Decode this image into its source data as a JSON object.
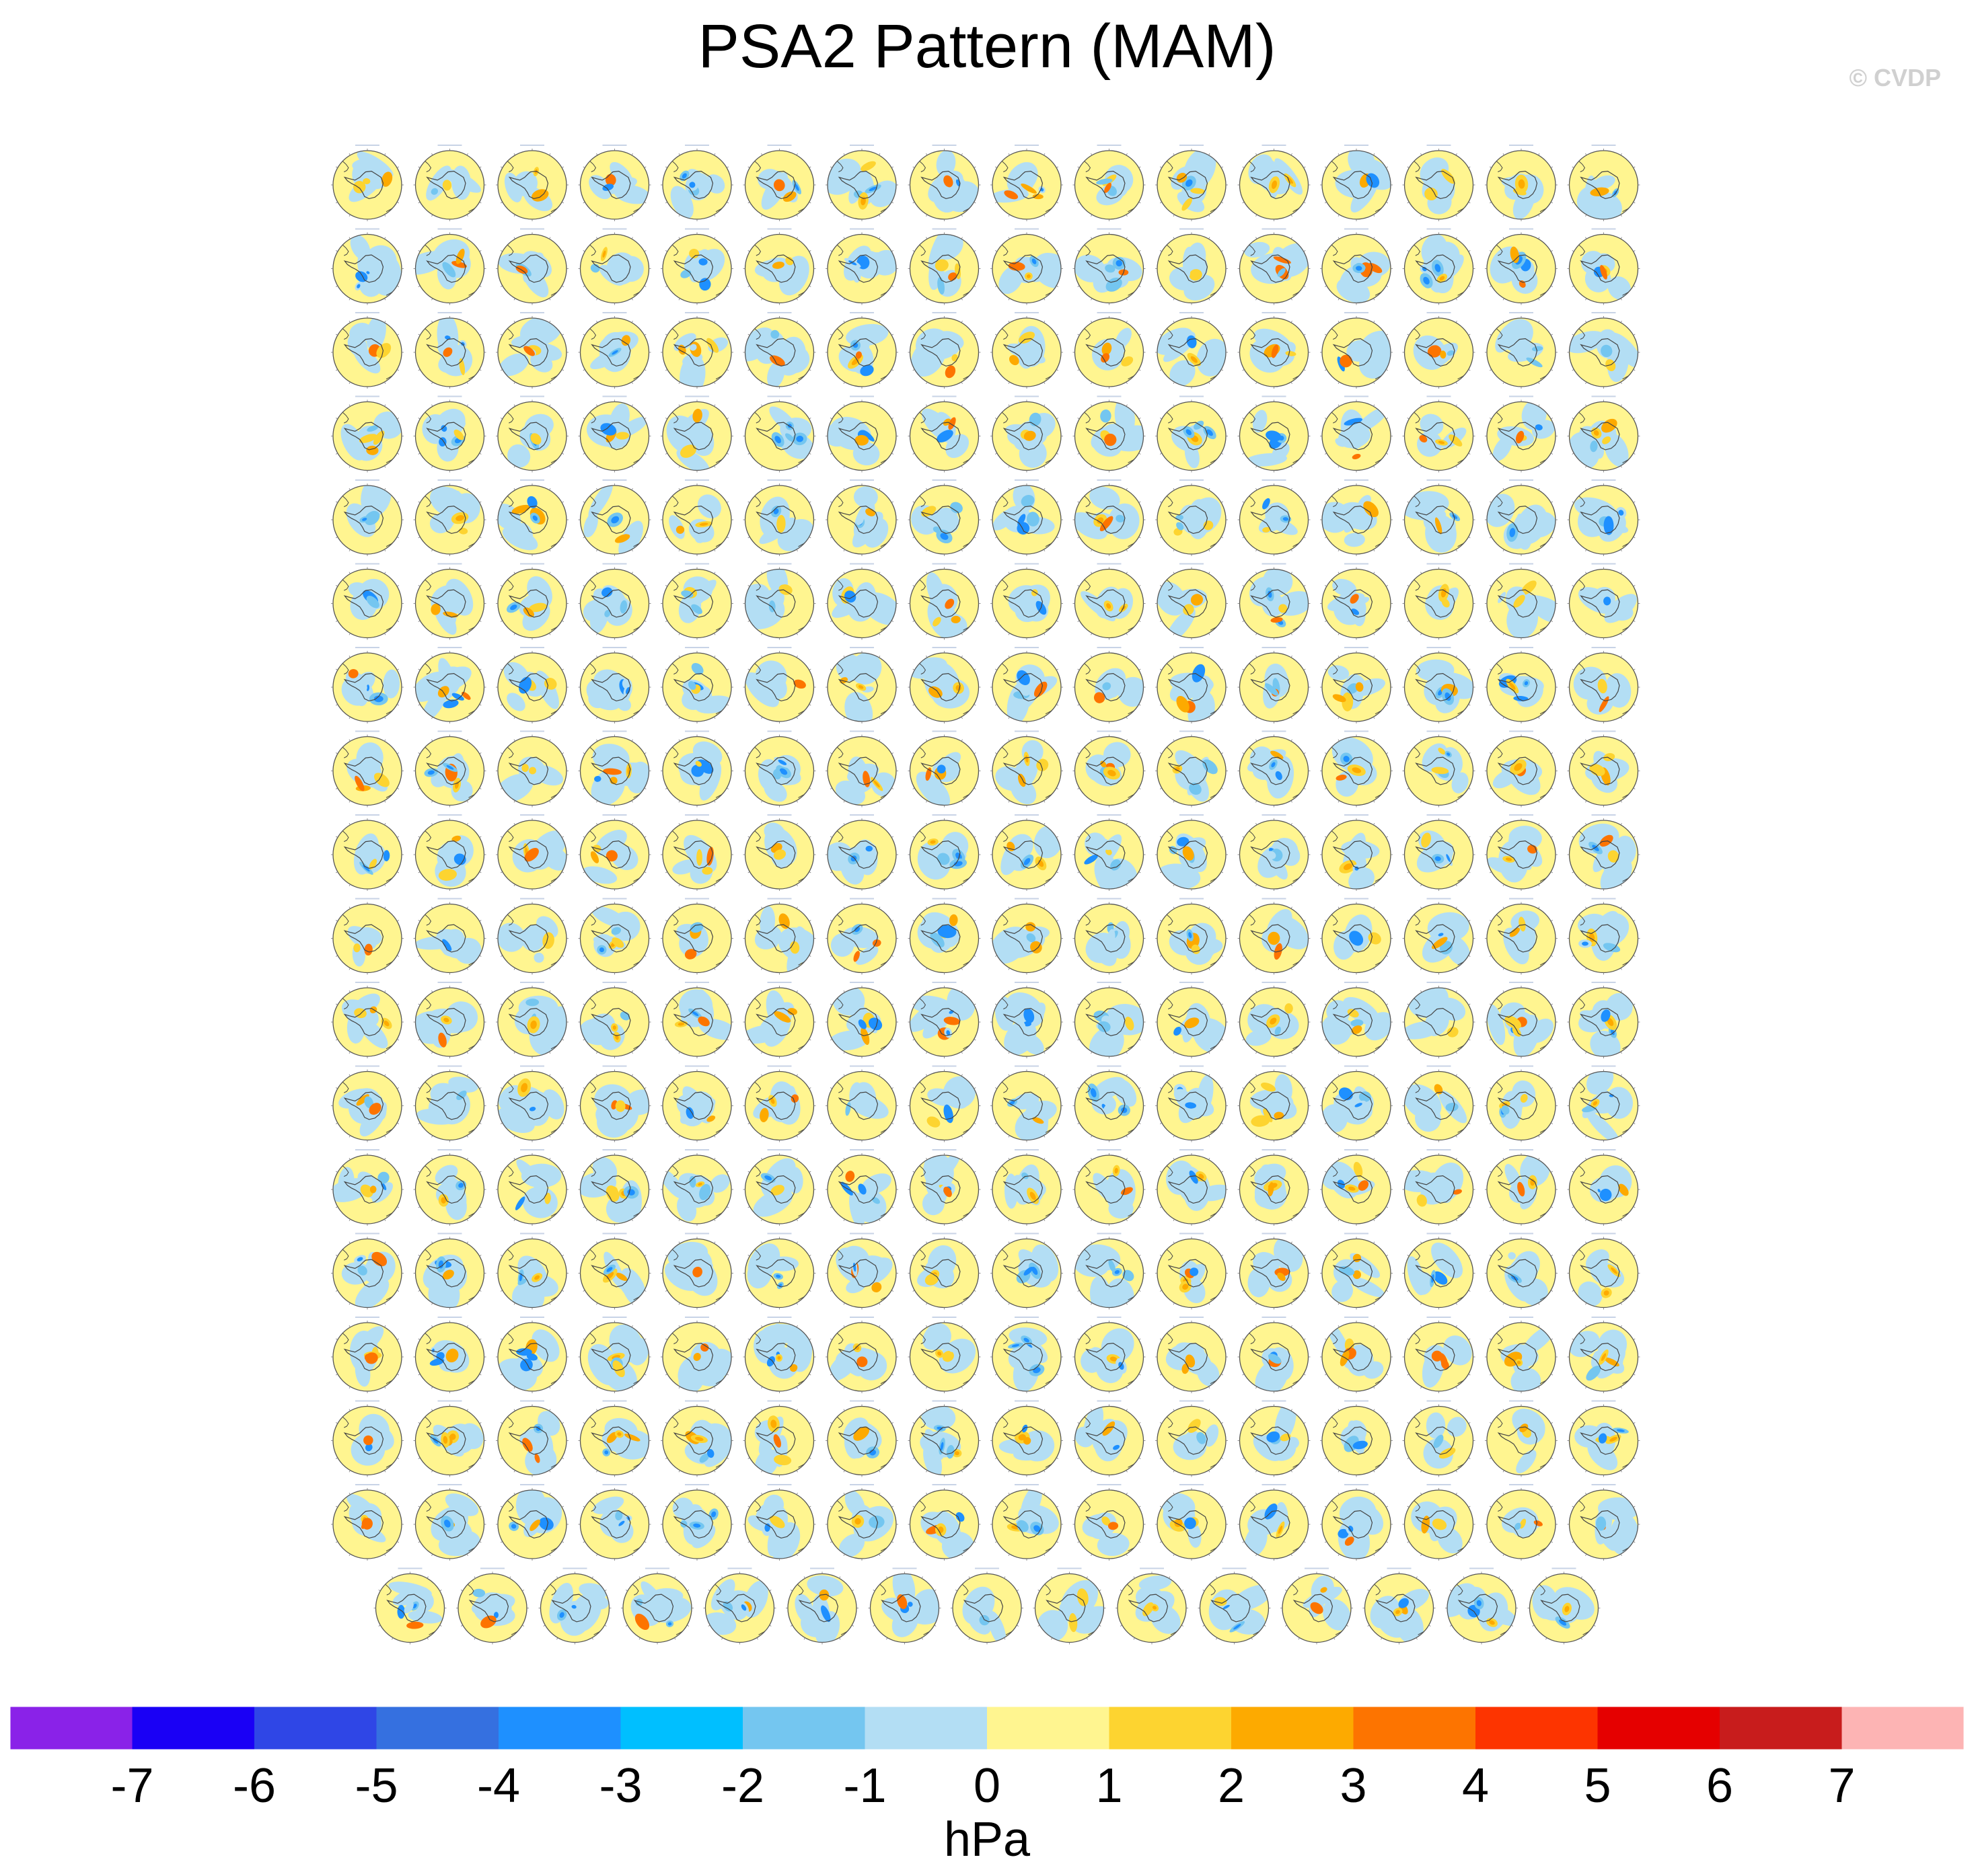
{
  "figure": {
    "title": "PSA2 Pattern (MAM)",
    "copyright": "© CVDP"
  },
  "chart_data": {
    "type": "heatmap",
    "title": "PSA2 Pattern (MAM)",
    "description_kind": "panel grid of polar stereographic maps (Southern Hemisphere)",
    "panel_grid": {
      "columns": 16,
      "full_rows": 17,
      "last_row_panels": 15,
      "total_panels": 287
    },
    "colorbar": {
      "label": "hPa",
      "orientation": "horizontal",
      "ticks": [
        -7,
        -6,
        -5,
        -4,
        -3,
        -2,
        -1,
        0,
        1,
        2,
        3,
        4,
        5,
        6,
        7
      ],
      "colors": [
        "#8a22e8",
        "#1a00f5",
        "#2f46e6",
        "#3570e0",
        "#1e90ff",
        "#00bfff",
        "#74c6f0",
        "#b3def4",
        "#fff590",
        "#fdd430",
        "#fdaa00",
        "#fd7400",
        "#fd3400",
        "#e50000",
        "#c81c1c",
        "#fdb4b4"
      ]
    },
    "palette": {
      "ocean_base": "#fff590",
      "negative_weak": "#b3def4",
      "negative_mid": "#74c6f0",
      "negative_strong": "#1e90ff",
      "positive_mid": "#fdd430",
      "positive_strong": "#fdaa00",
      "positive_peak": "#fd7400",
      "coastline": "#444444"
    }
  }
}
